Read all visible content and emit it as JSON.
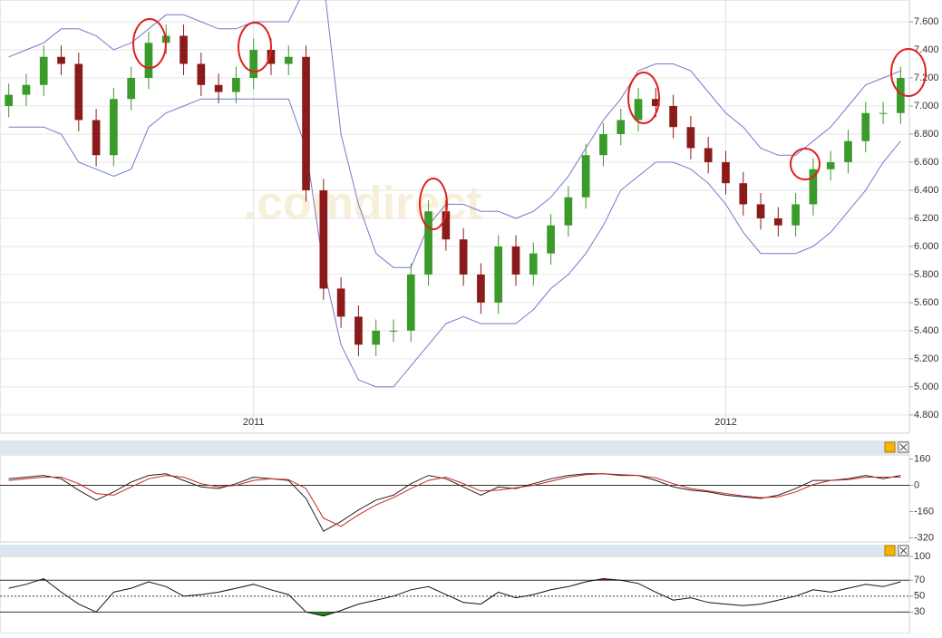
{
  "watermark": ".comdirect",
  "chart_data": [
    {
      "type": "candlestick",
      "categories": [
        null,
        null,
        null,
        null,
        null,
        null,
        null,
        null,
        null,
        null,
        null,
        null,
        null,
        null,
        "2011",
        null,
        null,
        null,
        null,
        null,
        null,
        null,
        null,
        null,
        null,
        null,
        null,
        null,
        null,
        null,
        null,
        null,
        null,
        null,
        null,
        null,
        null,
        null,
        null,
        null,
        null,
        "2012",
        null,
        null,
        null,
        null,
        null,
        null,
        null,
        null,
        null,
        null
      ],
      "open": [
        7000,
        7080,
        7150,
        7350,
        7300,
        6900,
        6650,
        7050,
        7200,
        7450,
        7500,
        7300,
        7150,
        7100,
        7200,
        7400,
        7300,
        7350,
        6400,
        5700,
        5500,
        5300,
        5400,
        5400,
        5800,
        6250,
        6050,
        5800,
        5600,
        6000,
        5800,
        5950,
        6150,
        6350,
        6650,
        6800,
        6900,
        7050,
        7000,
        6850,
        6700,
        6600,
        6450,
        6300,
        6200,
        6150,
        6300,
        6550,
        6600,
        6750,
        6950,
        6950
      ],
      "high": [
        7160,
        7230,
        7430,
        7430,
        7380,
        6980,
        7130,
        7280,
        7530,
        7580,
        7580,
        7380,
        7230,
        7280,
        7480,
        7480,
        7430,
        7430,
        6480,
        5780,
        5580,
        5480,
        5480,
        5880,
        6330,
        6330,
        6130,
        5880,
        6080,
        6080,
        6030,
        6230,
        6430,
        6730,
        6880,
        6980,
        7130,
        7130,
        7080,
        6930,
        6780,
        6680,
        6530,
        6380,
        6280,
        6380,
        6630,
        6680,
        6830,
        7030,
        7030,
        7280
      ],
      "low": [
        6920,
        7000,
        7070,
        7220,
        6820,
        6570,
        6570,
        6970,
        7120,
        7370,
        7220,
        7070,
        7020,
        7020,
        7120,
        7220,
        7220,
        6320,
        5620,
        5420,
        5220,
        5220,
        5320,
        5320,
        5720,
        5970,
        5720,
        5520,
        5520,
        5720,
        5720,
        5870,
        6070,
        6270,
        6570,
        6720,
        6820,
        6920,
        6770,
        6620,
        6520,
        6370,
        6220,
        6120,
        6070,
        6070,
        6220,
        6470,
        6520,
        6670,
        6870,
        6870
      ],
      "close": [
        7080,
        7150,
        7350,
        7300,
        6900,
        6650,
        7050,
        7200,
        7450,
        7500,
        7300,
        7150,
        7100,
        7200,
        7400,
        7300,
        7350,
        6400,
        5700,
        5500,
        5300,
        5400,
        5400,
        5800,
        6250,
        6050,
        5800,
        5600,
        6000,
        5800,
        5950,
        6150,
        6350,
        6650,
        6800,
        6900,
        7050,
        7000,
        6850,
        6700,
        6600,
        6450,
        6300,
        6200,
        6150,
        6300,
        6550,
        6600,
        6750,
        6950,
        6950,
        7200
      ],
      "up_color": "#3a9a2a",
      "down_color": "#8b1a1a",
      "bands": {
        "color": "#7777cc",
        "upper": [
          7350,
          7400,
          7450,
          7550,
          7550,
          7500,
          7400,
          7450,
          7550,
          7650,
          7650,
          7600,
          7550,
          7550,
          7600,
          7600,
          7600,
          7850,
          7900,
          6800,
          6300,
          5950,
          5850,
          5850,
          6150,
          6300,
          6300,
          6250,
          6250,
          6200,
          6250,
          6350,
          6500,
          6700,
          6900,
          7050,
          7250,
          7300,
          7300,
          7250,
          7100,
          6950,
          6850,
          6700,
          6650,
          6650,
          6750,
          6850,
          7000,
          7150,
          7200,
          7250
        ],
        "lower": [
          6850,
          6850,
          6850,
          6800,
          6600,
          6550,
          6500,
          6550,
          6850,
          6950,
          7000,
          7050,
          7050,
          7050,
          7050,
          7050,
          7050,
          6700,
          5850,
          5300,
          5050,
          5000,
          5000,
          5150,
          5300,
          5450,
          5500,
          5450,
          5450,
          5450,
          5550,
          5700,
          5800,
          5950,
          6150,
          6400,
          6500,
          6600,
          6600,
          6550,
          6450,
          6300,
          6100,
          5950,
          5950,
          5950,
          6000,
          6100,
          6250,
          6400,
          6600,
          6750
        ]
      },
      "ylim": [
        4670,
        7755
      ],
      "yticks": [
        {
          "value": 7600,
          "label": "7.600"
        },
        {
          "value": 7400,
          "label": "7.400"
        },
        {
          "value": 7200,
          "label": "7.200"
        },
        {
          "value": 7000,
          "label": "7.000"
        },
        {
          "value": 6800,
          "label": "6.800"
        },
        {
          "value": 6600,
          "label": "6.600"
        },
        {
          "value": 6400,
          "label": "6.400"
        },
        {
          "value": 6200,
          "label": "6.200"
        },
        {
          "value": 6000,
          "label": "6.000"
        },
        {
          "value": 5800,
          "label": "5.800"
        },
        {
          "value": 5600,
          "label": "5.600"
        },
        {
          "value": 5400,
          "label": "5.400"
        },
        {
          "value": 5200,
          "label": "5.200"
        },
        {
          "value": 5000,
          "label": "5.000"
        },
        {
          "value": 4800,
          "label": "4.800"
        }
      ],
      "grid": true
    },
    {
      "type": "line",
      "series": [
        {
          "color": "#222222",
          "values": [
            40,
            50,
            60,
            40,
            -30,
            -90,
            -40,
            20,
            60,
            70,
            30,
            -10,
            -20,
            10,
            50,
            40,
            30,
            -80,
            -280,
            -220,
            -150,
            -90,
            -60,
            10,
            60,
            40,
            -10,
            -60,
            -10,
            -20,
            10,
            40,
            60,
            70,
            70,
            60,
            60,
            30,
            -10,
            -30,
            -40,
            -60,
            -70,
            -80,
            -60,
            -20,
            30,
            30,
            40,
            60,
            40,
            60
          ]
        },
        {
          "color": "#cc2222",
          "values": [
            30,
            40,
            50,
            50,
            10,
            -50,
            -60,
            -10,
            40,
            60,
            50,
            10,
            -10,
            0,
            30,
            40,
            35,
            -20,
            -200,
            -250,
            -180,
            -120,
            -75,
            -20,
            30,
            50,
            10,
            -35,
            -30,
            -15,
            0,
            25,
            50,
            65,
            70,
            65,
            60,
            45,
            10,
            -20,
            -35,
            -50,
            -65,
            -75,
            -70,
            -40,
            5,
            30,
            35,
            50,
            50,
            50
          ]
        }
      ],
      "ylim": [
        -345,
        185
      ],
      "yticks": [
        160,
        0,
        -160,
        -320
      ]
    },
    {
      "type": "line",
      "series": [
        {
          "color": "#111111",
          "values": [
            60,
            65,
            72,
            55,
            40,
            30,
            55,
            60,
            68,
            62,
            50,
            52,
            55,
            60,
            65,
            58,
            52,
            30,
            25,
            32,
            40,
            45,
            50,
            58,
            62,
            52,
            42,
            40,
            55,
            48,
            52,
            58,
            62,
            68,
            72,
            70,
            66,
            55,
            45,
            48,
            42,
            40,
            38,
            40,
            45,
            50,
            58,
            55,
            60,
            65,
            62,
            68
          ]
        }
      ],
      "overbought_color": "#a01818",
      "oversold_color": "#1a8a1a",
      "ylim": [
        3,
        100
      ],
      "yticks": [
        100,
        70,
        50,
        30
      ]
    }
  ]
}
